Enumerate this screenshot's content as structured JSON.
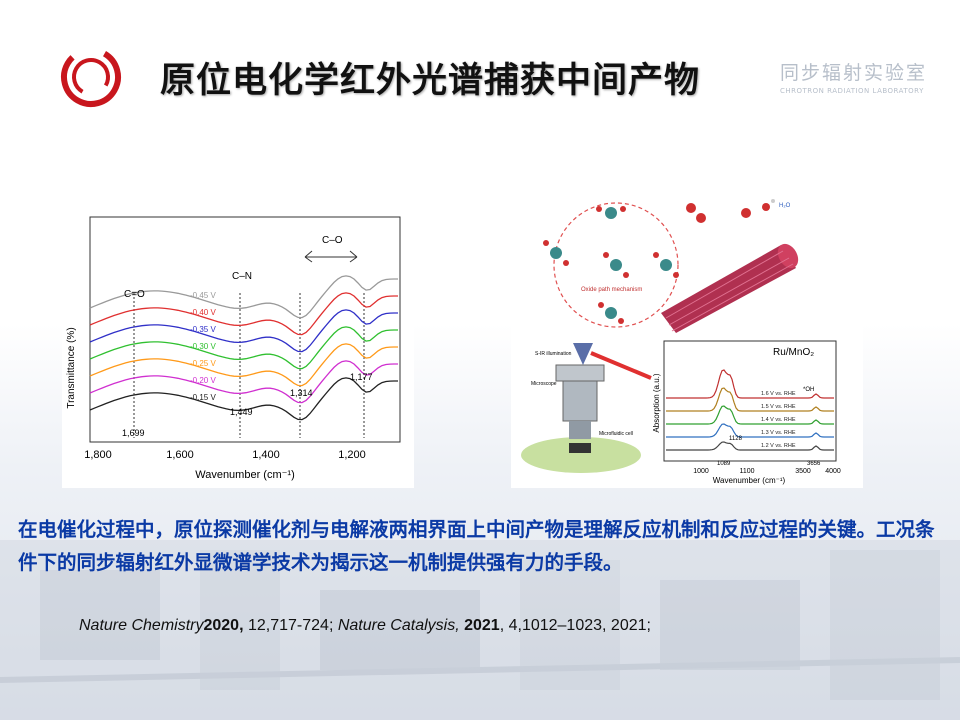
{
  "header": {
    "title": "原位电化学红外光谱捕获中间产物",
    "lab_name_cn": "同步辐射实验室",
    "lab_name_en": "CHROTRON RADIATION LABORATORY"
  },
  "figure_left": {
    "ylabel": "Transmittance (%)",
    "xlabel": "Wavenumber (cm⁻¹)",
    "x_ticks": [
      "1,800",
      "1,600",
      "1,400",
      "1,200"
    ],
    "annotations": {
      "co_double": "C=O",
      "cn": "C–N",
      "co_single": "C–O"
    },
    "peak_labels": [
      "1,699",
      "1,449",
      "1,314",
      "1,177"
    ],
    "series": [
      {
        "name": "-0.45 V",
        "color": "#9a9a9a"
      },
      {
        "name": "-0.40 V",
        "color": "#e03030"
      },
      {
        "name": "-0.35 V",
        "color": "#3030c8"
      },
      {
        "name": "-0.30 V",
        "color": "#30c030"
      },
      {
        "name": "-0.25 V",
        "color": "#ff9a1a"
      },
      {
        "name": "-0.20 V",
        "color": "#d030d0"
      },
      {
        "name": "-0.15 V",
        "color": "#222222"
      }
    ]
  },
  "figure_right": {
    "top_label": "Oxide path mechanism",
    "water_label": "H₂O",
    "setup_labels": {
      "sir": "S-IR illumination",
      "microscope": "Microscope",
      "cell": "Microfluidic cell"
    },
    "spectrum": {
      "title": "Ru/MnO₂",
      "ylabel": "Absorption (a.u.)",
      "xlabel": "Wavenumber (cm⁻¹)",
      "x_ticks": [
        "1000",
        "1100",
        "3500",
        "4000"
      ],
      "oh_label": "*OH",
      "peak_labels": [
        "1128",
        "1089",
        "3656"
      ],
      "series": [
        {
          "name": "1.6 V vs. RHE",
          "color": "#c03030"
        },
        {
          "name": "1.5 V vs. RHE",
          "color": "#b08020"
        },
        {
          "name": "1.4 V vs. RHE",
          "color": "#30a030"
        },
        {
          "name": "1.3 V vs. RHE",
          "color": "#3070c0"
        },
        {
          "name": "1.2 V vs. RHE",
          "color": "#444444"
        }
      ]
    }
  },
  "body": {
    "paragraph": "在电催化过程中，原位探测催化剂与电解液两相界面上中间产物是理解反应机制和反应过程的关键。工况条件下的同步辐射红外显微谱学技术为揭示这一机制提供强有力的手段。"
  },
  "reference": {
    "j1": "Nature Chemistry",
    "y1": "2020,",
    "r1": " 12,717-724;  ",
    "j2": "Nature Catalysis,",
    "y2": " 2021",
    "r2": ", 4,1012–1023,  2021;"
  },
  "colors": {
    "title": "#111111",
    "paragraph": "#0b3aa5",
    "logo": "#c8161d"
  }
}
